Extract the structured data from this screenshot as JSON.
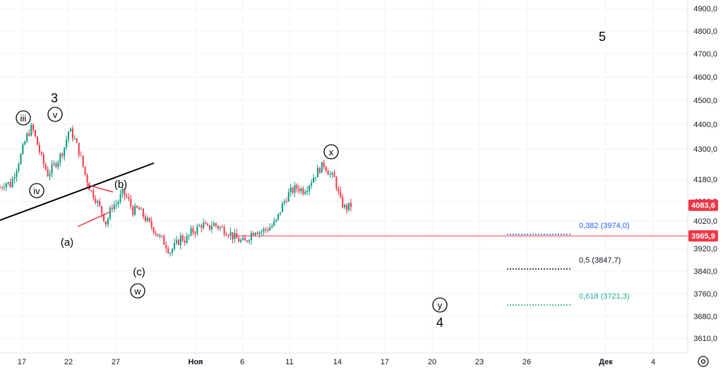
{
  "chart_data": {
    "type": "candlestick",
    "y_ticks": [
      "4900,0",
      "4800,0",
      "4700,0",
      "4600,0",
      "4500,0",
      "4400,0",
      "4300,0",
      "4180,0",
      "4100,0",
      "4020,0",
      "3920,0",
      "3840,0",
      "3760,0",
      "3680,0",
      "3610,0"
    ],
    "x_ticks": [
      "17",
      "22",
      "27",
      "Ноя",
      "6",
      "11",
      "14",
      "17",
      "20",
      "23",
      "26",
      "Дек",
      "4"
    ],
    "price_path": [
      4150,
      4170,
      4160,
      4220,
      4280,
      4350,
      4390,
      4320,
      4250,
      4200,
      4230,
      4260,
      4300,
      4380,
      4340,
      4280,
      4200,
      4140,
      4110,
      4060,
      4010,
      4080,
      4090,
      4130,
      4110,
      4060,
      4070,
      4040,
      4010,
      3990,
      3960,
      3940,
      3910,
      3930,
      3960,
      3950,
      3980,
      3990,
      4010,
      3990,
      4010,
      4000,
      3990,
      3980,
      3960,
      3950,
      3940,
      3970,
      3990,
      3980,
      3990,
      4000,
      4020,
      4080,
      4120,
      4140,
      4150,
      4140,
      4160,
      4190,
      4220,
      4240,
      4200,
      4180,
      4100,
      4070,
      4083
    ],
    "current_price": "4083,6",
    "current_price_color": "#f23645",
    "horizontal_level": "3965,9",
    "horizontal_level_value": 3965.9,
    "horizontal_level_color": "#f23645",
    "fib_levels": [
      {
        "label": "0,382 (3974,0)",
        "value": 3974.0,
        "color": "#2962ff"
      },
      {
        "label": "0,5 (3847,7)",
        "value": 3847.7,
        "color": "#131722"
      },
      {
        "label": "0,618 (3721,3)",
        "value": 3721.3,
        "color": "#22ab94"
      }
    ],
    "wave_labels": {
      "w3": "3",
      "iii": "iii",
      "v": "v",
      "iv": "iv",
      "a": "(a)",
      "b": "(b)",
      "c": "(c)",
      "w": "w",
      "x": "x",
      "y": "y",
      "w4": "4",
      "w5": "5"
    },
    "colors": {
      "up": "#089981",
      "down": "#f23645",
      "trendline": "#000000",
      "triangle": "#f23645"
    }
  },
  "toolbar": {
    "settings_icon": "gear-icon"
  }
}
